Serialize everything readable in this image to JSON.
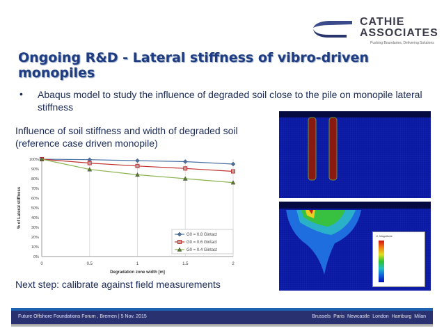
{
  "logo": {
    "line1": "CATHIE",
    "line2": "ASSOCIATES",
    "tagline": "Pushing Boundaries, Delivering Solutions"
  },
  "title": "Ongoing R&D - Lateral stiffness of vibro-driven monopiles",
  "bullet": "Abaqus model to study the influence of degraded soil close to the pile on monopile lateral stiffness",
  "subheading": "Influence of soil stiffness and width of degraded soil (reference case driven monopile)",
  "next_step": "Next step: calibrate against  field measurements",
  "simulation": {
    "legend_title": "U, Magnitude"
  },
  "footer": {
    "left": "Future Offshore Foundations Forum , Bremen | 5 Nov. 2015",
    "right": "Brussels  Paris  Newcastle  London  Hamburg  Milan"
  },
  "chart_data": {
    "type": "line",
    "title": "",
    "xlabel": "Degradation zone width [m]",
    "ylabel": "% of Lateral stiffness",
    "x": [
      0,
      0.5,
      1,
      1.5,
      2
    ],
    "x_ticks": [
      "0",
      "0.5",
      "1",
      "1.5",
      "2"
    ],
    "y_ticks": [
      "0%",
      "10%",
      "20%",
      "30%",
      "40%",
      "50%",
      "60%",
      "70%",
      "80%",
      "90%",
      "100%"
    ],
    "xlim": [
      0,
      2
    ],
    "ylim": [
      0,
      100
    ],
    "grid": "vertical",
    "legend": "bottom-right",
    "series": [
      {
        "name": "G0 = 0.8 Gintact",
        "color": "#4a6fa5",
        "marker": "diamond",
        "values": [
          100,
          99.5,
          98.5,
          97.5,
          95
        ]
      },
      {
        "name": "G0 = 0.6 Gintact",
        "color": "#c0302e",
        "marker": "square",
        "values": [
          100,
          96,
          93,
          90.5,
          87.5
        ]
      },
      {
        "name": "G0 = 0.4 Gintact",
        "color": "#8ab34e",
        "marker": "triangle",
        "values": [
          100,
          89.5,
          84,
          80,
          76
        ]
      }
    ]
  }
}
